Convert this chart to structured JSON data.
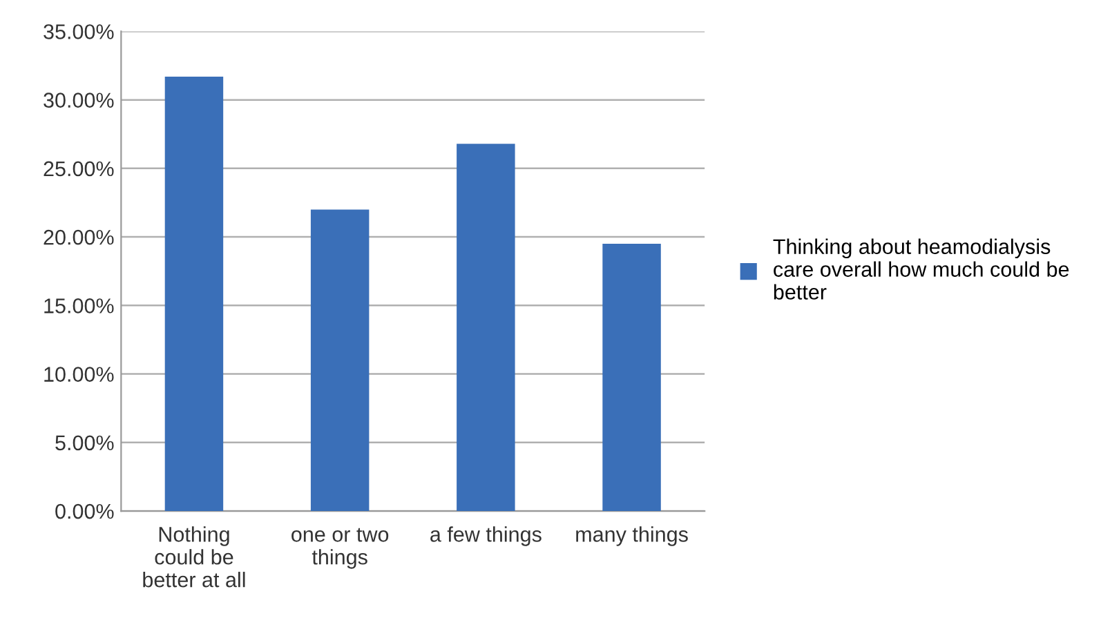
{
  "chart_data": {
    "type": "bar",
    "categories": [
      "Nothing\ncould be\nbetter at all",
      "one or two\nthings",
      "a few things",
      "many things"
    ],
    "series": [
      {
        "name": "Thinking about heamodialysis\ncare overall how much could be\nbetter",
        "color": "#3a6fb8",
        "values": [
          31.7,
          22.0,
          26.8,
          19.5
        ]
      }
    ],
    "ylim": [
      0,
      35
    ],
    "yticks": [
      {
        "value": 0,
        "label": "0.00%"
      },
      {
        "value": 5,
        "label": "5.00%"
      },
      {
        "value": 10,
        "label": "10.00%"
      },
      {
        "value": 15,
        "label": "15.00%"
      },
      {
        "value": 20,
        "label": "20.00%"
      },
      {
        "value": 25,
        "label": "25.00%"
      },
      {
        "value": 30,
        "label": "30.00%"
      },
      {
        "value": 35,
        "label": "35.00%"
      }
    ],
    "grid": "y",
    "legend": "right"
  }
}
